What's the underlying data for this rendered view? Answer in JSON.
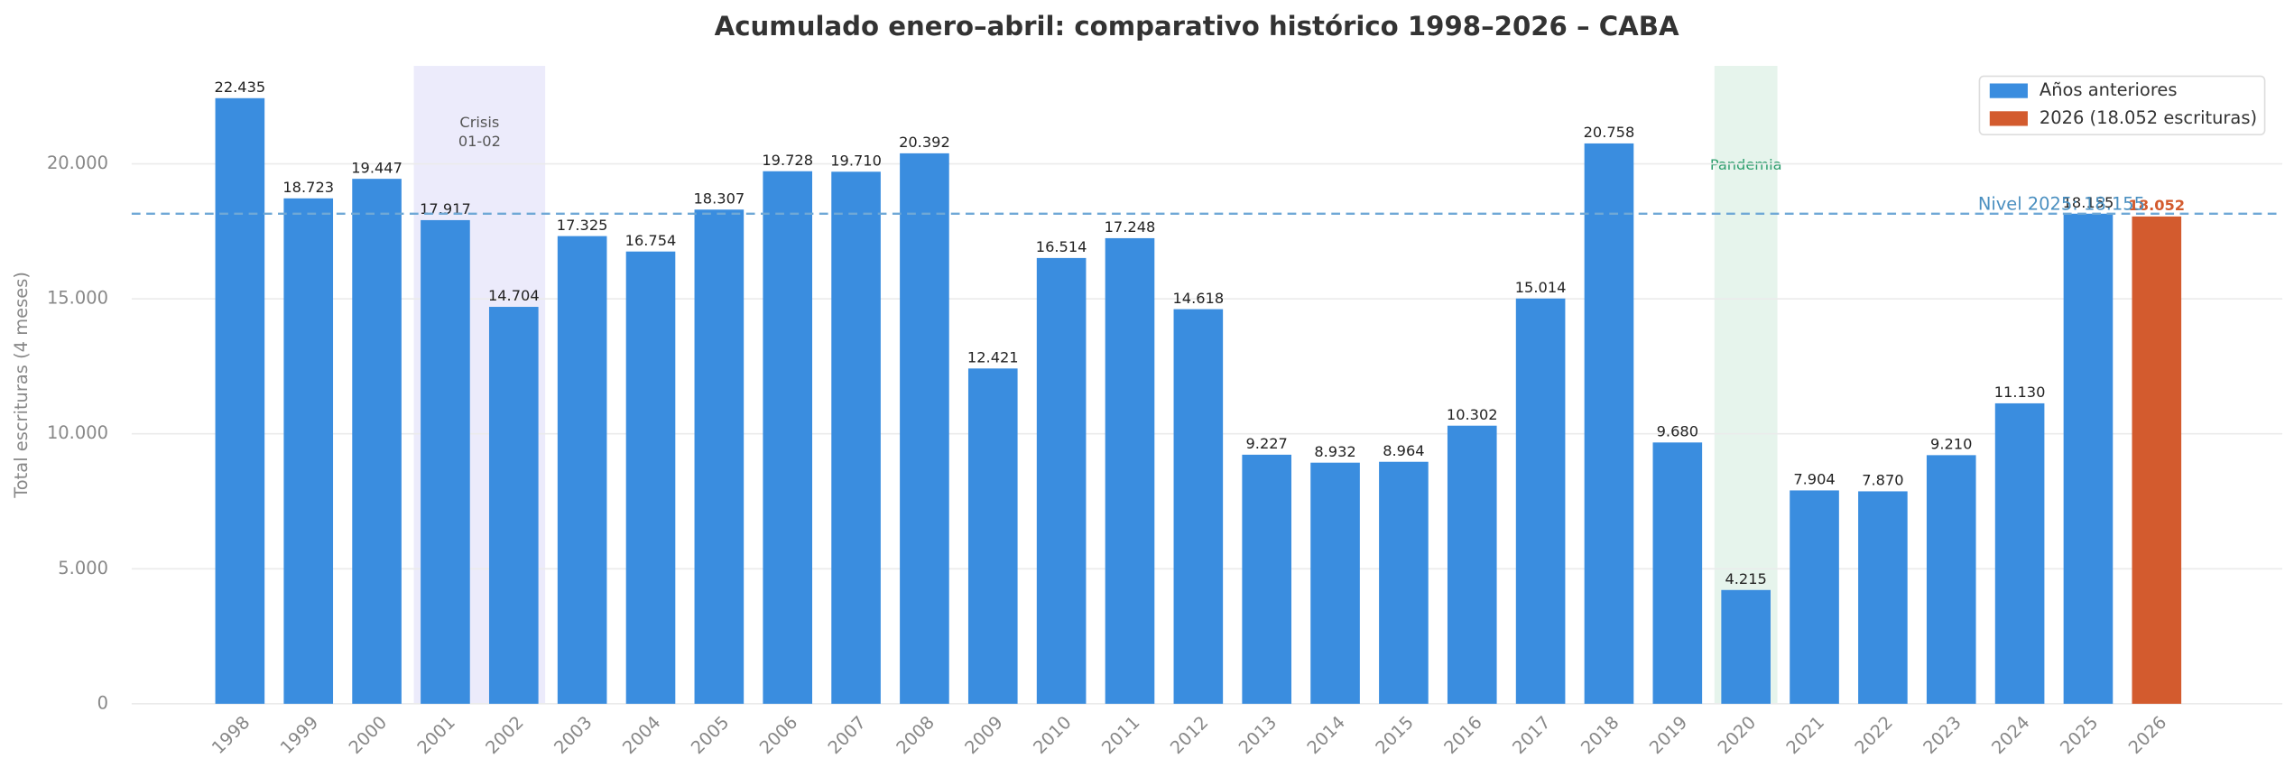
{
  "chart_data": {
    "type": "bar",
    "title": "Acumulado enero–abril: comparativo histórico 1998–2026 – CABA",
    "y_label": "Total escrituras (4 meses)",
    "categories": [
      "1998",
      "1999",
      "2000",
      "2001",
      "2002",
      "2003",
      "2004",
      "2005",
      "2006",
      "2007",
      "2008",
      "2009",
      "2010",
      "2011",
      "2012",
      "2013",
      "2014",
      "2015",
      "2016",
      "2017",
      "2018",
      "2019",
      "2020",
      "2021",
      "2022",
      "2023",
      "2024",
      "2025",
      "2026"
    ],
    "series": [
      {
        "name": "Años anteriores",
        "color": "#3a8ddf",
        "values": [
          22435,
          18723,
          19447,
          17917,
          14704,
          17325,
          16754,
          18307,
          19728,
          19710,
          20392,
          12421,
          16514,
          17248,
          14618,
          9227,
          8932,
          8964,
          10302,
          15014,
          20758,
          9680,
          4215,
          7904,
          7870,
          9210,
          11130,
          18155,
          null
        ],
        "value_labels": [
          "22.435",
          "18.723",
          "19.447",
          "17.917",
          "14.704",
          "17.325",
          "16.754",
          "18.307",
          "19.728",
          "19.710",
          "20.392",
          "12.421",
          "16.514",
          "17.248",
          "14.618",
          "9.227",
          "8.932",
          "8.964",
          "10.302",
          "15.014",
          "20.758",
          "9.680",
          "4.215",
          "7.904",
          "7.870",
          "9.210",
          "11.130",
          "18.155",
          null
        ]
      },
      {
        "name": "2026 (18.052 escrituras)",
        "color": "#d35b2e",
        "values": [
          null,
          null,
          null,
          null,
          null,
          null,
          null,
          null,
          null,
          null,
          null,
          null,
          null,
          null,
          null,
          null,
          null,
          null,
          null,
          null,
          null,
          null,
          null,
          null,
          null,
          null,
          null,
          null,
          18052
        ],
        "value_labels": [
          null,
          null,
          null,
          null,
          null,
          null,
          null,
          null,
          null,
          null,
          null,
          null,
          null,
          null,
          null,
          null,
          null,
          null,
          null,
          null,
          null,
          null,
          null,
          null,
          null,
          null,
          null,
          null,
          "18.052"
        ]
      }
    ],
    "reference_line": {
      "value": 18155,
      "label": "Nivel 2025: 18.155",
      "color": "#6fa8d6"
    },
    "spans": [
      {
        "from": "2001",
        "to": "2002",
        "label": [
          "Crisis",
          "01-02"
        ],
        "color": "#ecebfb",
        "text_color": "#555555"
      },
      {
        "from": "2020",
        "to": "2020",
        "label": [
          "Pandemia"
        ],
        "color": "#e6f4ec",
        "text_color": "#2e9e6e"
      }
    ],
    "ylim": [
      0,
      23630
    ],
    "yticks": [
      0,
      {
        "value": 5000,
        "label": "5.000"
      },
      {
        "value": 10000,
        "label": "10.000"
      },
      {
        "value": 15000,
        "label": "15.000"
      },
      {
        "value": 20000,
        "label": "20.000"
      }
    ],
    "grid": true,
    "legend": "upper right"
  }
}
